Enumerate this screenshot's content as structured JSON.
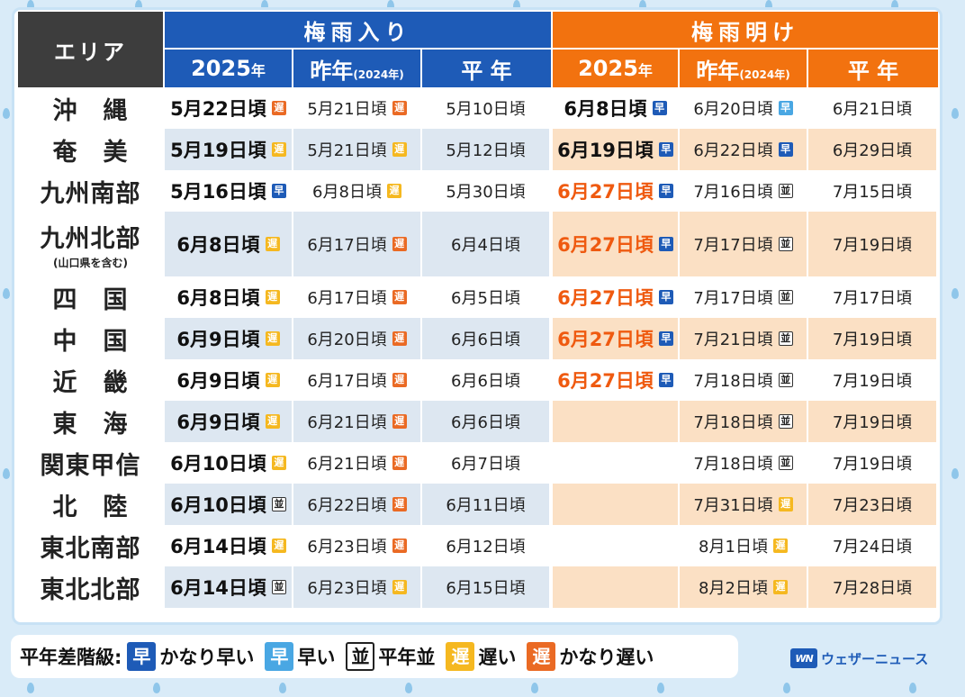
{
  "header": {
    "area": "エリア",
    "tsuyu_iri": "梅雨入り",
    "tsuyu_ake": "梅雨明け",
    "col_2025_main": "2025",
    "col_2025_suffix": "年",
    "col_last_main": "昨年",
    "col_last_sub": "(2024年)",
    "col_normal": "平 年"
  },
  "colors": {
    "tsuyu_iri": "#1e5bb7",
    "tsuyu_ake": "#f2720f",
    "area_header": "#3d3d3d",
    "much_earlier": "#1e5bb7",
    "earlier": "#49a7e3",
    "normal": "#ffffff",
    "later": "#f5b820",
    "much_later": "#ea6a24"
  },
  "badges": {
    "e2": "早",
    "e1": "早",
    "n": "並",
    "l1": "遅",
    "l2": "遅"
  },
  "rows": [
    {
      "area": "沖　縄",
      "note": "",
      "alt": false,
      "tall": false,
      "in2025": "5月22日頃",
      "in2025_b": "l2",
      "inLast": "5月21日頃",
      "inLast_b": "l2",
      "inNormal": "5月10日頃",
      "out2025": "6月8日頃",
      "out2025_b": "e2",
      "out2025_style": "bold",
      "outLast": "6月20日頃",
      "outLast_b": "e1",
      "outNormal": "6月21日頃"
    },
    {
      "area": "奄　美",
      "note": "",
      "alt": true,
      "tall": false,
      "in2025": "5月19日頃",
      "in2025_b": "l1",
      "inLast": "5月21日頃",
      "inLast_b": "l1",
      "inNormal": "5月12日頃",
      "out2025": "6月19日頃",
      "out2025_b": "e2",
      "out2025_style": "bold",
      "outLast": "6月22日頃",
      "outLast_b": "e2",
      "outNormal": "6月29日頃"
    },
    {
      "area": "九州南部",
      "note": "",
      "alt": false,
      "tall": false,
      "in2025": "5月16日頃",
      "in2025_b": "e2",
      "inLast": "6月8日頃",
      "inLast_b": "l1",
      "inNormal": "5月30日頃",
      "out2025": "6月27日頃",
      "out2025_b": "e2",
      "out2025_style": "org",
      "outLast": "7月16日頃",
      "outLast_b": "n",
      "outNormal": "7月15日頃"
    },
    {
      "area": "九州北部",
      "note": "(山口県を含む)",
      "alt": true,
      "tall": true,
      "in2025": "6月8日頃",
      "in2025_b": "l1",
      "inLast": "6月17日頃",
      "inLast_b": "l2",
      "inNormal": "6月4日頃",
      "out2025": "6月27日頃",
      "out2025_b": "e2",
      "out2025_style": "org",
      "outLast": "7月17日頃",
      "outLast_b": "n",
      "outNormal": "7月19日頃"
    },
    {
      "area": "四　国",
      "note": "",
      "alt": false,
      "tall": false,
      "in2025": "6月8日頃",
      "in2025_b": "l1",
      "inLast": "6月17日頃",
      "inLast_b": "l2",
      "inNormal": "6月5日頃",
      "out2025": "6月27日頃",
      "out2025_b": "e2",
      "out2025_style": "org",
      "outLast": "7月17日頃",
      "outLast_b": "n",
      "outNormal": "7月17日頃"
    },
    {
      "area": "中　国",
      "note": "",
      "alt": true,
      "tall": false,
      "in2025": "6月9日頃",
      "in2025_b": "l1",
      "inLast": "6月20日頃",
      "inLast_b": "l2",
      "inNormal": "6月6日頃",
      "out2025": "6月27日頃",
      "out2025_b": "e2",
      "out2025_style": "org",
      "outLast": "7月21日頃",
      "outLast_b": "n",
      "outNormal": "7月19日頃"
    },
    {
      "area": "近　畿",
      "note": "",
      "alt": false,
      "tall": false,
      "in2025": "6月9日頃",
      "in2025_b": "l1",
      "inLast": "6月17日頃",
      "inLast_b": "l2",
      "inNormal": "6月6日頃",
      "out2025": "6月27日頃",
      "out2025_b": "e2",
      "out2025_style": "org",
      "outLast": "7月18日頃",
      "outLast_b": "n",
      "outNormal": "7月19日頃"
    },
    {
      "area": "東　海",
      "note": "",
      "alt": true,
      "tall": false,
      "in2025": "6月9日頃",
      "in2025_b": "l1",
      "inLast": "6月21日頃",
      "inLast_b": "l2",
      "inNormal": "6月6日頃",
      "out2025": "",
      "out2025_b": "",
      "out2025_style": "org",
      "outLast": "7月18日頃",
      "outLast_b": "n",
      "outNormal": "7月19日頃"
    },
    {
      "area": "関東甲信",
      "note": "",
      "alt": false,
      "tall": false,
      "in2025": "6月10日頃",
      "in2025_b": "l1",
      "inLast": "6月21日頃",
      "inLast_b": "l2",
      "inNormal": "6月7日頃",
      "out2025": "",
      "out2025_b": "",
      "out2025_style": "org",
      "outLast": "7月18日頃",
      "outLast_b": "n",
      "outNormal": "7月19日頃"
    },
    {
      "area": "北　陸",
      "note": "",
      "alt": true,
      "tall": false,
      "in2025": "6月10日頃",
      "in2025_b": "n",
      "inLast": "6月22日頃",
      "inLast_b": "l2",
      "inNormal": "6月11日頃",
      "out2025": "",
      "out2025_b": "",
      "out2025_style": "org",
      "outLast": "7月31日頃",
      "outLast_b": "l1",
      "outNormal": "7月23日頃"
    },
    {
      "area": "東北南部",
      "note": "",
      "alt": false,
      "tall": false,
      "in2025": "6月14日頃",
      "in2025_b": "l1",
      "inLast": "6月23日頃",
      "inLast_b": "l2",
      "inNormal": "6月12日頃",
      "out2025": "",
      "out2025_b": "",
      "out2025_style": "org",
      "outLast": "8月1日頃",
      "outLast_b": "l1",
      "outNormal": "7月24日頃"
    },
    {
      "area": "東北北部",
      "note": "",
      "alt": true,
      "tall": false,
      "in2025": "6月14日頃",
      "in2025_b": "n",
      "inLast": "6月23日頃",
      "inLast_b": "l1",
      "inNormal": "6月15日頃",
      "out2025": "",
      "out2025_b": "",
      "out2025_style": "org",
      "outLast": "8月2日頃",
      "outLast_b": "l1",
      "outNormal": "7月28日頃"
    }
  ],
  "legend": {
    "title": "平年差階級:",
    "items": [
      {
        "badge": "早",
        "kind": "e2",
        "label": "かなり早い"
      },
      {
        "badge": "早",
        "kind": "e1",
        "label": "早い"
      },
      {
        "badge": "並",
        "kind": "n",
        "label": "平年並"
      },
      {
        "badge": "遅",
        "kind": "l1",
        "label": "遅い"
      },
      {
        "badge": "遅",
        "kind": "l2",
        "label": "かなり遅い"
      }
    ]
  },
  "logo": {
    "mark": "WN",
    "name": "ウェザーニュース"
  }
}
